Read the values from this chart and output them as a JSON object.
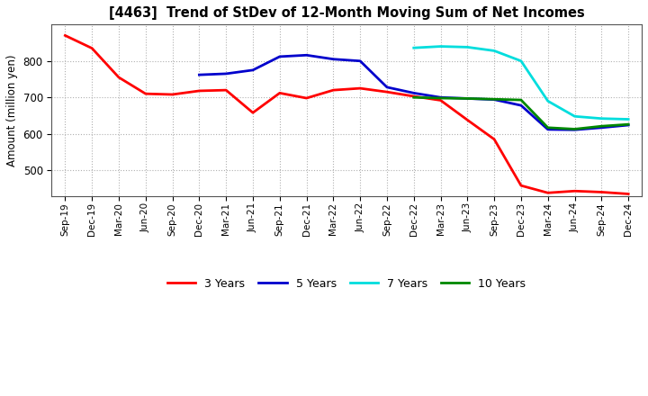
{
  "title": "[4463]  Trend of StDev of 12-Month Moving Sum of Net Incomes",
  "ylabel": "Amount (million yen)",
  "background_color": "#ffffff",
  "grid_color": "#b0b0b0",
  "x_labels": [
    "Sep-19",
    "Dec-19",
    "Mar-20",
    "Jun-20",
    "Sep-20",
    "Dec-20",
    "Mar-21",
    "Jun-21",
    "Sep-21",
    "Dec-21",
    "Mar-22",
    "Jun-22",
    "Sep-22",
    "Dec-22",
    "Mar-23",
    "Jun-23",
    "Sep-23",
    "Dec-23",
    "Mar-24",
    "Jun-24",
    "Sep-24",
    "Dec-24"
  ],
  "ylim": [
    430,
    900
  ],
  "yticks": [
    500,
    600,
    700,
    800
  ],
  "series": {
    "3yr": {
      "color": "#ff0000",
      "label": "3 Years",
      "x": [
        0,
        1,
        2,
        3,
        4,
        5,
        6,
        7,
        8,
        9,
        10,
        11,
        12,
        13,
        14,
        15,
        16,
        17,
        18,
        19,
        20,
        21
      ],
      "y": [
        870,
        835,
        755,
        710,
        708,
        718,
        720,
        658,
        712,
        698,
        720,
        725,
        715,
        703,
        692,
        638,
        585,
        458,
        438,
        443,
        440,
        435
      ]
    },
    "5yr": {
      "color": "#0000cc",
      "label": "5 Years",
      "x": [
        5,
        6,
        7,
        8,
        9,
        10,
        11,
        12,
        13,
        14,
        15,
        16,
        17,
        18,
        19,
        20,
        21
      ],
      "y": [
        762,
        765,
        775,
        812,
        816,
        805,
        800,
        728,
        712,
        700,
        697,
        694,
        678,
        612,
        611,
        617,
        624
      ]
    },
    "7yr": {
      "color": "#00dddd",
      "label": "7 Years",
      "x": [
        13,
        14,
        15,
        16,
        17,
        18,
        19,
        20,
        21
      ],
      "y": [
        836,
        840,
        838,
        828,
        800,
        690,
        648,
        642,
        640
      ]
    },
    "10yr": {
      "color": "#008800",
      "label": "10 Years",
      "x": [
        13,
        14,
        15,
        16,
        17,
        18,
        19,
        20,
        21
      ],
      "y": [
        700,
        698,
        697,
        695,
        693,
        617,
        613,
        621,
        626
      ]
    }
  }
}
